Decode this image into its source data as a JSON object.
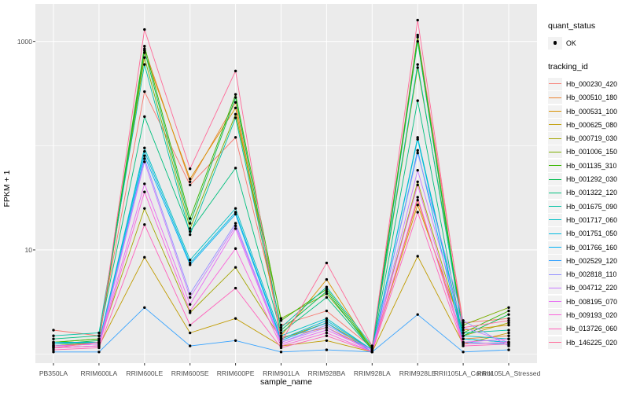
{
  "figure": {
    "background": "#ffffff",
    "panel_background": "#ebebeb",
    "grid_color": "#ffffff",
    "axis_text_color": "#4d4d4d",
    "tick_color": "#333333",
    "point_color": "#000000",
    "legend_key_fill": "#f2f2f2"
  },
  "y_axis": {
    "title": "FPKM + 1",
    "tick_labels": [
      "1000",
      "10"
    ],
    "tick_values": [
      1000,
      10
    ],
    "minor_values": [
      100,
      1
    ],
    "scale": "log10"
  },
  "x_axis": {
    "title": "sample_name"
  },
  "legend": {
    "quant_status_title": "quant_status",
    "quant_status_ok_label": "OK",
    "tracking_id_title": "tracking_id"
  },
  "chart_data": {
    "type": "line",
    "title": "",
    "xlabel": "sample_name",
    "ylabel": "FPKM + 1",
    "y_scale": "log10",
    "ylim": [
      1,
      2000
    ],
    "grid": true,
    "legend_position": "right",
    "quant_status": "OK",
    "categories": [
      "PB350LA",
      "RRIM600LA",
      "RRIM600LE",
      "RRIM600SE",
      "RRIM600PE",
      "RRIM901LA",
      "RRIM928BA",
      "RRIM928LA",
      "RRIM928LE",
      "RRII105LA_Control",
      "RRII105LA_Stressed"
    ],
    "series": [
      {
        "name": "Hb_000230_420",
        "color": "#F8766D",
        "values": [
          1.7,
          1.5,
          330,
          42,
          120,
          1.9,
          2.6,
          1.15,
          1150,
          2.0,
          2.2
        ]
      },
      {
        "name": "Hb_000510_180",
        "color": "#EA8331",
        "values": [
          1.25,
          1.3,
          850,
          45,
          260,
          1.45,
          1.8,
          1.1,
          30,
          1.4,
          1.5
        ]
      },
      {
        "name": "Hb_000531_100",
        "color": "#D89000",
        "values": [
          1.2,
          1.3,
          780,
          48,
          230,
          1.5,
          5.2,
          1.1,
          27,
          1.7,
          1.9
        ]
      },
      {
        "name": "Hb_000625_080",
        "color": "#C09B00",
        "values": [
          1.15,
          1.2,
          8.5,
          1.6,
          2.2,
          1.2,
          1.35,
          1.05,
          8.7,
          1.25,
          1.6
        ]
      },
      {
        "name": "Hb_000719_030",
        "color": "#A3A500",
        "values": [
          1.2,
          1.3,
          25,
          2.5,
          6.8,
          1.4,
          2.0,
          1.1,
          45,
          1.5,
          2.0
        ]
      },
      {
        "name": "Hb_001006_150",
        "color": "#7CAE00",
        "values": [
          1.3,
          1.4,
          700,
          16,
          200,
          2.2,
          3.8,
          1.15,
          560,
          1.9,
          2.8
        ]
      },
      {
        "name": "Hb_001135_310",
        "color": "#39B600",
        "values": [
          1.3,
          1.4,
          900,
          20,
          310,
          2.1,
          4.2,
          1.15,
          1100,
          1.6,
          2.6
        ]
      },
      {
        "name": "Hb_001292_030",
        "color": "#00BB4E",
        "values": [
          1.25,
          1.35,
          820,
          18,
          290,
          1.7,
          4.0,
          1.1,
          1000,
          1.5,
          2.4
        ]
      },
      {
        "name": "Hb_001322_120",
        "color": "#00BF7D",
        "values": [
          1.4,
          1.5,
          190,
          15,
          61,
          1.6,
          3.5,
          1.1,
          270,
          1.4,
          1.3
        ]
      },
      {
        "name": "Hb_001675_090",
        "color": "#00C1A3",
        "values": [
          1.5,
          1.6,
          600,
          14,
          185,
          1.8,
          4.4,
          1.2,
          600,
          1.6,
          1.7
        ]
      },
      {
        "name": "Hb_001717_060",
        "color": "#00BFC4",
        "values": [
          1.3,
          1.3,
          95,
          8.0,
          25,
          1.5,
          2.2,
          1.1,
          120,
          1.5,
          1.4
        ]
      },
      {
        "name": "Hb_001751_050",
        "color": "#00BAE0",
        "values": [
          1.25,
          1.3,
          88,
          7.5,
          23,
          1.4,
          2.1,
          1.1,
          115,
          1.4,
          1.3
        ]
      },
      {
        "name": "Hb_001766_160",
        "color": "#00B0F6",
        "values": [
          1.2,
          1.25,
          80,
          7.2,
          22,
          1.35,
          2.0,
          1.05,
          90,
          1.3,
          1.25
        ]
      },
      {
        "name": "Hb_002529_120",
        "color": "#35A2FF",
        "values": [
          1.05,
          1.05,
          2.8,
          1.2,
          1.35,
          1.05,
          1.1,
          1.05,
          2.4,
          1.05,
          1.1
        ]
      },
      {
        "name": "Hb_002818_110",
        "color": "#9590FF",
        "values": [
          1.2,
          1.25,
          75,
          3.8,
          18,
          1.3,
          1.9,
          1.1,
          85,
          2.1,
          1.2
        ]
      },
      {
        "name": "Hb_004712_220",
        "color": "#C77CFF",
        "values": [
          1.15,
          1.2,
          70,
          3.5,
          17,
          1.3,
          1.8,
          1.05,
          58,
          1.8,
          1.3
        ]
      },
      {
        "name": "Hb_008195_070",
        "color": "#E76BF3",
        "values": [
          1.2,
          1.25,
          43,
          3.0,
          16,
          1.25,
          1.7,
          1.1,
          42,
          1.3,
          1.4
        ]
      },
      {
        "name": "Hb_009193_020",
        "color": "#FA62DB",
        "values": [
          1.15,
          1.2,
          36,
          2.6,
          10.3,
          1.2,
          1.6,
          1.05,
          32,
          1.25,
          1.3
        ]
      },
      {
        "name": "Hb_013726_060",
        "color": "#FF62BC",
        "values": [
          1.1,
          1.15,
          17.5,
          1.9,
          4.3,
          1.15,
          1.5,
          1.05,
          23,
          1.2,
          1.25
        ]
      },
      {
        "name": "Hb_146225_020",
        "color": "#FF6A98",
        "values": [
          1.15,
          1.3,
          1300,
          60,
          520,
          1.3,
          7.5,
          1.2,
          1600,
          1.8,
          2.1
        ]
      }
    ]
  }
}
